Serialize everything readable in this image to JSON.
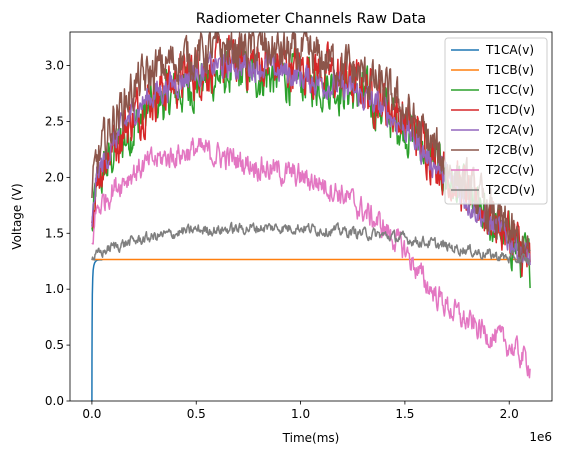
{
  "chart_data": {
    "type": "line",
    "title": "Radiometer Channels Raw Data",
    "xlabel": "Time(ms)",
    "ylabel": "Voltage (V)",
    "x_offset_label": "1e6",
    "xlim": [
      -0.105,
      2.205
    ],
    "ylim": [
      0.0,
      3.3
    ],
    "xticks": [
      0.0,
      0.5,
      1.0,
      1.5,
      2.0
    ],
    "xtick_labels": [
      "0.0",
      "0.5",
      "1.0",
      "1.5",
      "2.0"
    ],
    "yticks": [
      0.0,
      0.5,
      1.0,
      1.5,
      2.0,
      2.5,
      3.0
    ],
    "ytick_labels": [
      "0.0",
      "0.5",
      "1.0",
      "1.5",
      "2.0",
      "2.5",
      "3.0"
    ],
    "grid": false,
    "legend_position": "top-right",
    "series": [
      {
        "name": "T1CA(v)",
        "color": "#1f77b4",
        "noise": 0.0,
        "x": [
          0.0,
          0.0003,
          0.001,
          0.002,
          0.004,
          0.006,
          0.009,
          0.013,
          0.018,
          0.025,
          0.035,
          0.05
        ],
        "y": [
          0.0,
          0.35,
          0.7,
          0.95,
          1.1,
          1.17,
          1.21,
          1.235,
          1.25,
          1.26,
          1.262,
          1.262
        ]
      },
      {
        "name": "T1CB(v)",
        "color": "#ff7f0e",
        "noise": 0.0,
        "x": [
          0.0,
          2.1
        ],
        "y": [
          1.265,
          1.265
        ]
      },
      {
        "name": "T1CC(v)",
        "color": "#2ca02c",
        "noise": 0.17,
        "x": [
          0.0,
          0.02,
          0.1,
          0.2,
          0.3,
          0.4,
          0.5,
          0.6,
          0.7,
          0.8,
          0.9,
          1.0,
          1.1,
          1.2,
          1.3,
          1.4,
          1.5,
          1.6,
          1.7,
          1.8,
          1.9,
          2.0,
          2.1
        ],
        "y": [
          1.5,
          1.9,
          2.2,
          2.45,
          2.65,
          2.75,
          2.85,
          2.9,
          2.92,
          2.92,
          2.9,
          2.88,
          2.85,
          2.8,
          2.72,
          2.6,
          2.45,
          2.25,
          2.0,
          1.8,
          1.6,
          1.45,
          1.2
        ]
      },
      {
        "name": "T1CD(v)",
        "color": "#d62728",
        "noise": 0.18,
        "x": [
          0.0,
          0.02,
          0.1,
          0.2,
          0.3,
          0.4,
          0.5,
          0.6,
          0.7,
          0.8,
          0.9,
          1.0,
          1.1,
          1.2,
          1.3,
          1.4,
          1.5,
          1.6,
          1.7,
          1.8,
          1.9,
          2.0,
          2.1
        ],
        "y": [
          1.6,
          2.0,
          2.3,
          2.55,
          2.75,
          2.85,
          2.95,
          3.0,
          3.02,
          3.03,
          3.0,
          2.98,
          2.95,
          2.88,
          2.8,
          2.68,
          2.5,
          2.3,
          2.05,
          1.85,
          1.65,
          1.5,
          1.2
        ]
      },
      {
        "name": "T2CA(v)",
        "color": "#9467bd",
        "noise": 0.1,
        "x": [
          0.0,
          0.02,
          0.1,
          0.2,
          0.3,
          0.4,
          0.5,
          0.6,
          0.7,
          0.8,
          0.9,
          1.0,
          1.1,
          1.2,
          1.3,
          1.4,
          1.5,
          1.6,
          1.7,
          1.8,
          1.9,
          2.0,
          2.1
        ],
        "y": [
          1.5,
          2.0,
          2.3,
          2.6,
          2.75,
          2.85,
          2.95,
          3.0,
          3.0,
          3.0,
          2.95,
          2.9,
          2.85,
          2.8,
          2.72,
          2.6,
          2.45,
          2.2,
          2.0,
          1.8,
          1.6,
          1.45,
          1.25
        ]
      },
      {
        "name": "T2CB(v)",
        "color": "#8c564b",
        "noise": 0.16,
        "x": [
          0.0,
          0.02,
          0.1,
          0.2,
          0.3,
          0.4,
          0.5,
          0.6,
          0.7,
          0.8,
          0.9,
          1.0,
          1.1,
          1.2,
          1.3,
          1.4,
          1.5,
          1.6,
          1.7,
          1.8,
          1.9,
          2.0,
          2.1
        ],
        "y": [
          1.8,
          2.1,
          2.5,
          2.8,
          2.95,
          3.05,
          3.1,
          3.15,
          3.15,
          3.15,
          3.12,
          3.1,
          3.05,
          3.0,
          2.9,
          2.78,
          2.6,
          2.35,
          2.1,
          1.9,
          1.7,
          1.5,
          1.25
        ]
      },
      {
        "name": "T2CC(v)",
        "color": "#e377c2",
        "noise": 0.09,
        "x": [
          0.0,
          0.02,
          0.1,
          0.2,
          0.3,
          0.4,
          0.5,
          0.6,
          0.7,
          0.8,
          0.9,
          1.0,
          1.1,
          1.2,
          1.3,
          1.4,
          1.5,
          1.6,
          1.7,
          1.8,
          1.9,
          2.0,
          2.1
        ],
        "y": [
          1.4,
          1.7,
          1.9,
          2.05,
          2.15,
          2.2,
          2.25,
          2.2,
          2.15,
          2.1,
          2.05,
          2.0,
          1.95,
          1.85,
          1.7,
          1.55,
          1.35,
          1.05,
          0.85,
          0.7,
          0.6,
          0.5,
          0.33
        ]
      },
      {
        "name": "T2CD(v)",
        "color": "#7f7f7f",
        "noise": 0.04,
        "x": [
          0.0,
          0.02,
          0.1,
          0.2,
          0.3,
          0.4,
          0.5,
          0.6,
          0.7,
          0.8,
          0.9,
          1.0,
          1.1,
          1.2,
          1.3,
          1.4,
          1.5,
          1.6,
          1.7,
          1.8,
          1.9,
          2.0,
          2.1
        ],
        "y": [
          1.28,
          1.3,
          1.38,
          1.43,
          1.47,
          1.5,
          1.53,
          1.53,
          1.54,
          1.55,
          1.55,
          1.55,
          1.53,
          1.52,
          1.5,
          1.48,
          1.45,
          1.42,
          1.38,
          1.35,
          1.31,
          1.28,
          1.25
        ]
      }
    ]
  }
}
